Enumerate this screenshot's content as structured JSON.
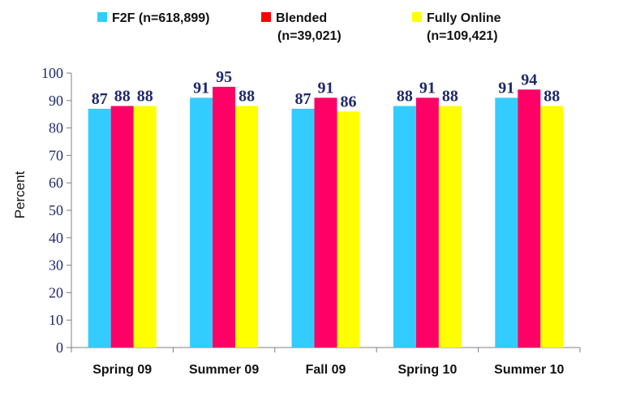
{
  "chart_data": {
    "type": "bar",
    "title": "",
    "xlabel": "",
    "ylabel": "Percent",
    "ylim": [
      0,
      100
    ],
    "yticks": [
      0,
      10,
      20,
      30,
      40,
      50,
      60,
      70,
      80,
      90,
      100
    ],
    "grid": false,
    "legend_position": "top",
    "categories": [
      "Spring 09",
      "Summer 09",
      "Fall 09",
      "Spring 10",
      "Summer 10"
    ],
    "series": [
      {
        "name": "F2F (n=618,899)",
        "legend_lines": [
          "F2F (n=618,899)"
        ],
        "color": "#33ccff",
        "values": [
          87,
          91,
          87,
          88,
          91
        ]
      },
      {
        "name": "Blended (n=39,021)",
        "legend_lines": [
          "Blended",
          "(n=39,021)"
        ],
        "color": "#ff0066",
        "values": [
          88,
          95,
          91,
          91,
          94
        ]
      },
      {
        "name": "Fully Online (n=109,421)",
        "legend_lines": [
          "Fully Online",
          "(n=109,421)"
        ],
        "color": "#ffff00",
        "values": [
          88,
          88,
          86,
          88,
          88
        ]
      }
    ],
    "legend_swatch_colors": [
      "#33ccff",
      "#ff0000",
      "#ffff00"
    ]
  }
}
